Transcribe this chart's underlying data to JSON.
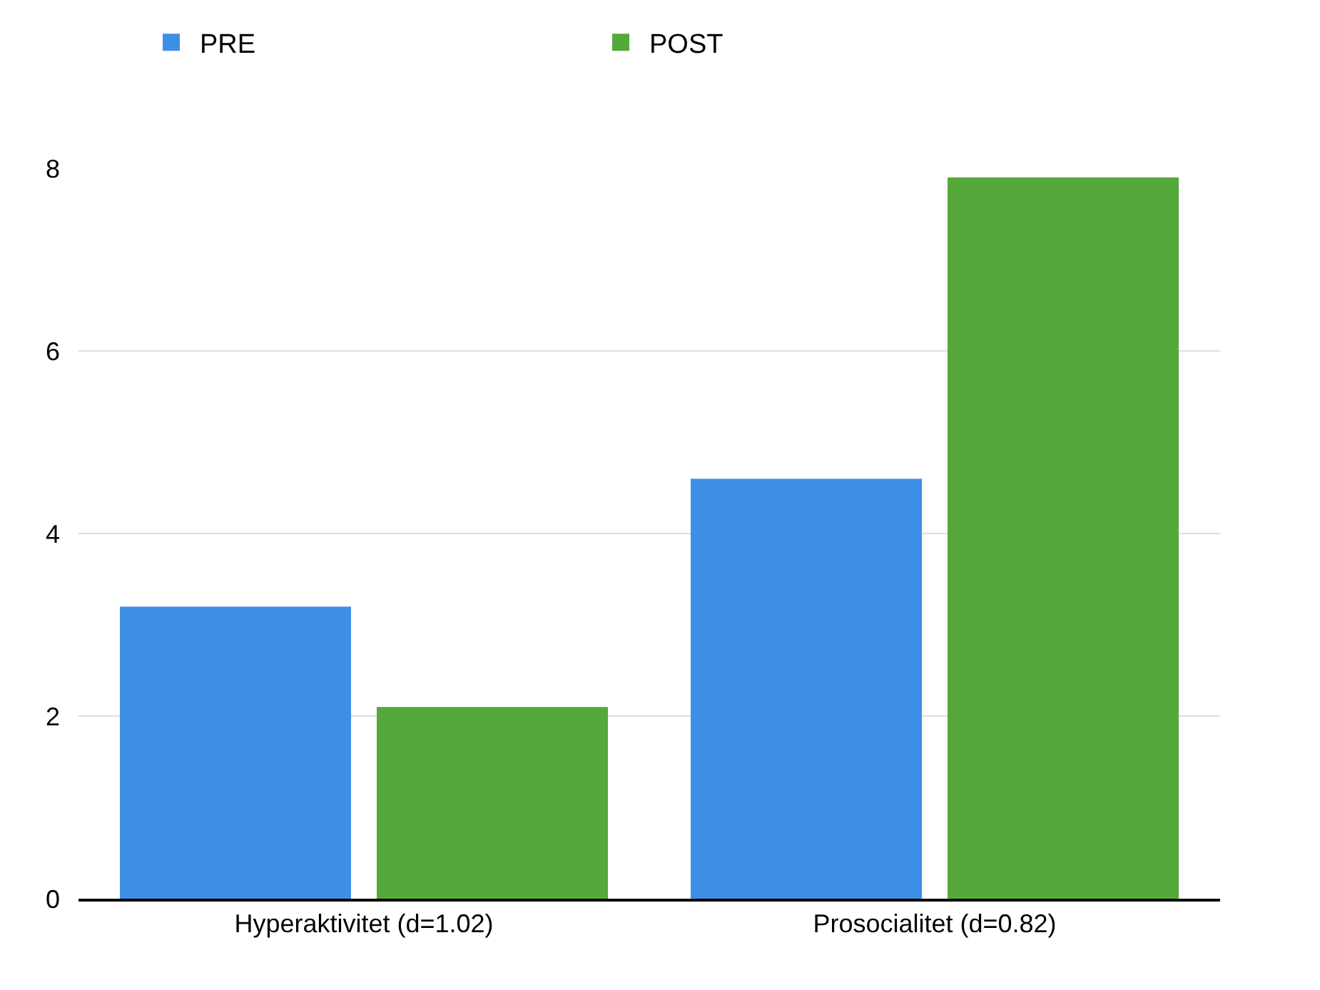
{
  "chart_data": {
    "type": "bar",
    "categories": [
      "Hyperaktivitet (d=1.02)",
      "Prosocialitet (d=0.82)"
    ],
    "series": [
      {
        "name": "PRE",
        "color": "#3d8fe6",
        "values": [
          3.2,
          4.6
        ]
      },
      {
        "name": "POST",
        "color": "#55a83a",
        "values": [
          2.1,
          7.9
        ]
      }
    ],
    "ylim": [
      0,
      8
    ],
    "yticks": [
      0,
      2,
      4,
      6,
      8
    ],
    "grid": "y",
    "legend": "top"
  }
}
